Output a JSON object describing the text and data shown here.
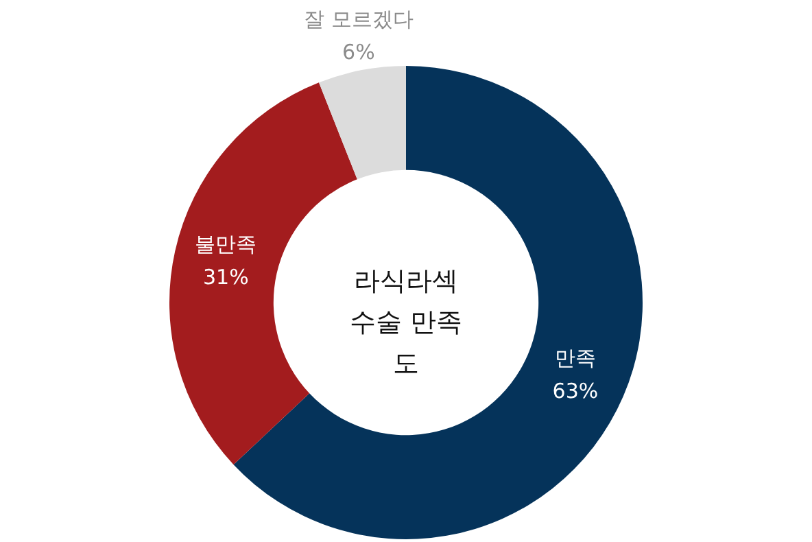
{
  "chart_data": {
    "type": "donut",
    "title": "라식라섹 수술 만족도",
    "categories": [
      "만족",
      "불만족",
      "잘 모르겠다"
    ],
    "values": [
      63,
      31,
      6
    ],
    "colors": [
      "#05335a",
      "#a31c1e",
      "#dcdcdc"
    ],
    "value_labels": [
      "63%",
      "31%",
      "6%"
    ],
    "legend": false
  }
}
